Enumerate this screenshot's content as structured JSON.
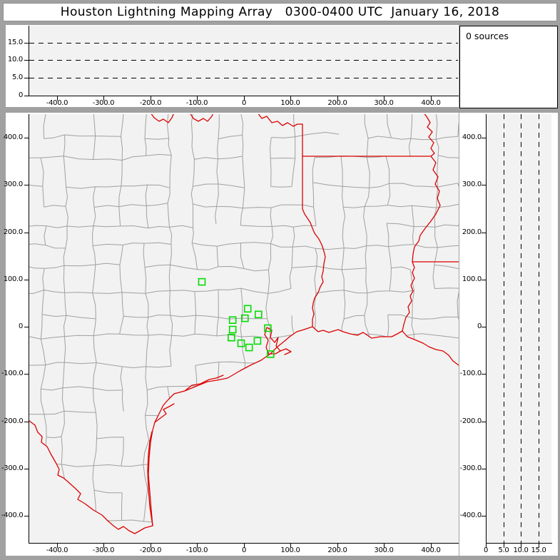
{
  "title_bar": {
    "text": "Houston Lightning Mapping Array   0300-0400 UTC  January 16, 2018"
  },
  "sources_panel": {
    "text": "0 sources"
  },
  "colors": {
    "background": "#a1a1a1",
    "panel": "#ffffff",
    "plot_background": "#f2f2f2",
    "axis": "#000000",
    "county_line": "#a0a0a0",
    "state_border": "#dd0000",
    "station_marker": "#00dd00"
  },
  "chart_data": [
    {
      "id": "altitude-vs-east-west",
      "type": "scatter",
      "title": "",
      "xlabel": "",
      "ylabel": "",
      "xlim": [
        -460,
        460
      ],
      "ylim": [
        0,
        19.7
      ],
      "x_tick_km": [
        -400,
        -300,
        -200,
        -100,
        0,
        100,
        200,
        300,
        400
      ],
      "x_ticks": [
        "-400.0",
        "-300.0",
        "-200.0",
        "-100.0",
        "0",
        "100.0",
        "200.0",
        "300.0",
        "400.0"
      ],
      "y_tick_km": [
        0,
        5,
        10,
        15
      ],
      "y_ticks": [
        "0",
        "5.0",
        "10.0",
        "15.0"
      ],
      "gridlines_km": [
        5,
        10,
        15
      ],
      "grid_style": "dashed",
      "points": []
    },
    {
      "id": "plan-view-map",
      "type": "scatter",
      "title": "",
      "xlabel": "",
      "ylabel": "",
      "xlim": [
        -460,
        459
      ],
      "ylim": [
        -455,
        450
      ],
      "x_tick_km": [
        -400,
        -300,
        -200,
        -100,
        0,
        100,
        200,
        300,
        400
      ],
      "x_ticks": [
        "-400.0",
        "-300.0",
        "-200.0",
        "-100.0",
        "0",
        "100.0",
        "200.0",
        "300.0",
        "400.0"
      ],
      "y_tick_km": [
        400,
        300,
        200,
        100,
        0,
        -100,
        -200,
        -300,
        -400
      ],
      "y_ticks": [
        "400.0",
        "300.0",
        "200.0",
        "100.0",
        "0",
        "-100.0",
        "-200.0",
        "-300.0",
        "-400.0"
      ],
      "stations_km": [
        [
          -91,
          95
        ],
        [
          7,
          38
        ],
        [
          30,
          26
        ],
        [
          1,
          18
        ],
        [
          -25,
          14
        ],
        [
          50,
          -3
        ],
        [
          -25,
          -6
        ],
        [
          -28,
          -23
        ],
        [
          28,
          -30
        ],
        [
          -7,
          -35
        ],
        [
          10,
          -44
        ],
        [
          56,
          -58
        ]
      ],
      "sources": []
    },
    {
      "id": "altitude-vs-north-south",
      "type": "scatter",
      "title": "",
      "xlabel": "",
      "ylabel": "",
      "xlim": [
        0,
        18.6
      ],
      "ylim": [
        -455,
        450
      ],
      "x_tick_km": [
        0,
        5,
        10,
        15
      ],
      "x_ticks": [
        "0",
        "5.0",
        "10.0",
        "15.0"
      ],
      "y_tick_km": [
        400,
        300,
        200,
        100,
        0,
        -100,
        -200,
        -300,
        -400
      ],
      "y_ticks": [
        "400.0",
        "300.0",
        "200.0",
        "100.0",
        "0",
        "-100.0",
        "-200.0",
        "-300.0",
        "-400.0"
      ],
      "gridlines_km": [
        5,
        10,
        15
      ],
      "grid_style": "dashed",
      "points": []
    }
  ]
}
